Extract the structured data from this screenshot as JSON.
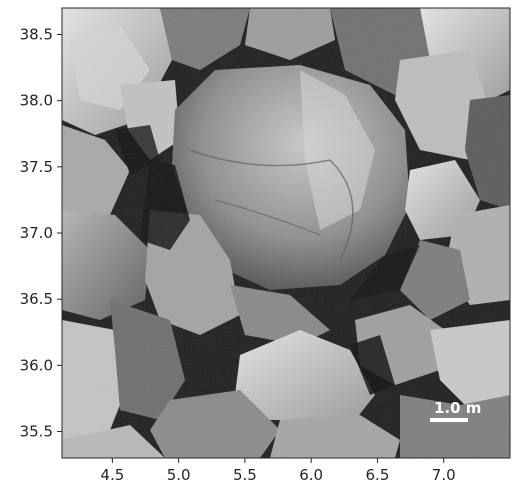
{
  "image": {
    "subject": "grayscale close-up of a boulder field",
    "colors": {
      "background": "#ffffff",
      "axis": "#262626",
      "scale_bar": "#ffffff"
    }
  },
  "axes": {
    "x_ticks": [
      "4.5",
      "5.0",
      "5.5",
      "6.0",
      "6.5",
      "7.0"
    ],
    "y_ticks": [
      "38.5",
      "38.0",
      "37.5",
      "37.0",
      "36.5",
      "36.0",
      "35.5"
    ],
    "x_range": [
      4.12,
      7.5
    ],
    "y_range": [
      35.3,
      38.7
    ]
  },
  "scale_bar": {
    "label": "1.0 m",
    "length_m": 1.0
  }
}
